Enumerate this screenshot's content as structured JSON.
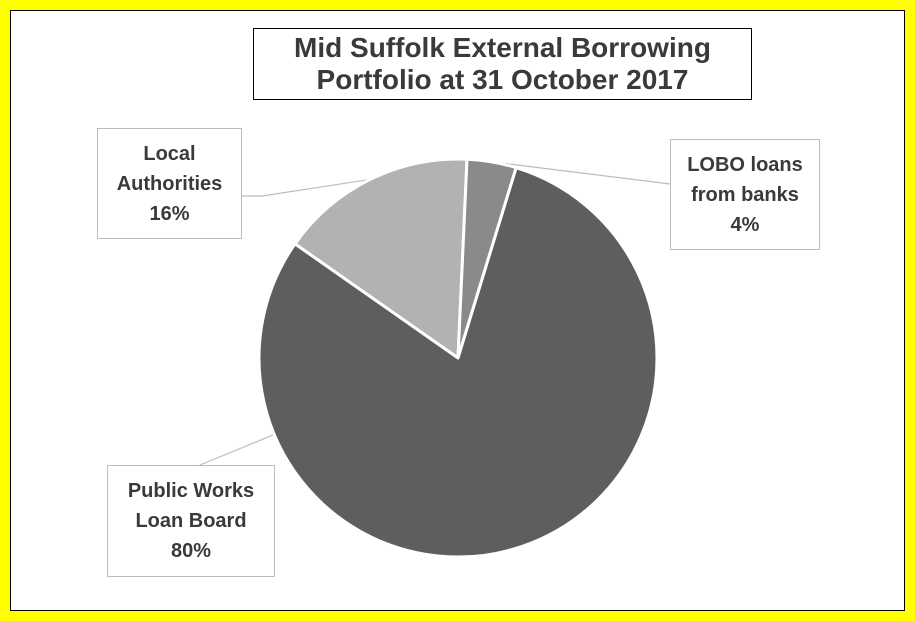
{
  "chart_data": {
    "type": "pie",
    "title": "Mid Suffolk External Borrowing Portfolio at 31 October 2017",
    "title_lines": [
      "Mid Suffolk External Borrowing",
      "Portfolio at 31 October 2017"
    ],
    "slices": [
      {
        "label": "Local Authorities",
        "label_lines": [
          "Local",
          "Authorities"
        ],
        "value": 16,
        "pct_label": "16%",
        "color": "#b2b2b2"
      },
      {
        "label": "LOBO loans from banks",
        "label_lines": [
          "LOBO loans",
          "from banks"
        ],
        "value": 4,
        "pct_label": "4%",
        "color": "#8a8a8a"
      },
      {
        "label": "Public Works Loan Board",
        "label_lines": [
          "Public Works",
          "Loan Board"
        ],
        "value": 80,
        "pct_label": "80%",
        "color": "#5e5e5e"
      }
    ],
    "legend": "none",
    "background_color": "#ffff00"
  }
}
